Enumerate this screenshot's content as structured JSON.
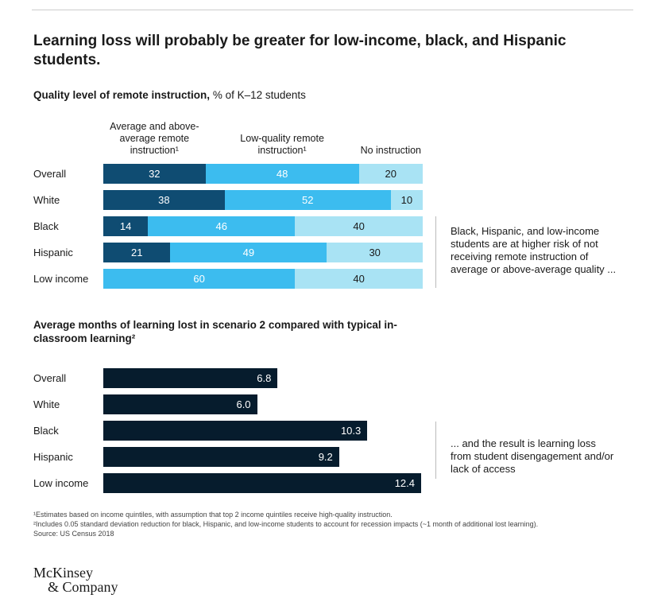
{
  "header": {
    "title": "Learning loss will probably be greater for low-income, black, and Hispanic students."
  },
  "chart_data": [
    {
      "type": "stacked_bar",
      "title": "Quality level of remote instruction,",
      "subtitle": "% of K–12 students",
      "categories": [
        "Overall",
        "White",
        "Black",
        "Hispanic",
        "Low income"
      ],
      "series": [
        {
          "name": "Average and above-average remote instruction¹",
          "color": "#0f4c72",
          "values": [
            32,
            38,
            14,
            21,
            null
          ]
        },
        {
          "name": "Low-quality remote instruction¹",
          "color": "#3cbcef",
          "values": [
            48,
            52,
            46,
            49,
            60
          ]
        },
        {
          "name": "No instruction",
          "color": "#a9e3f4",
          "values": [
            20,
            10,
            40,
            30,
            40
          ]
        }
      ],
      "annotation": "Black, Hispanic, and low-income students are at higher risk of not receiving remote instruction of average or above-average quality ..."
    },
    {
      "type": "bar",
      "title": "Average months of learning lost in scenario 2 compared with typical in-classroom learning²",
      "categories": [
        "Overall",
        "White",
        "Black",
        "Hispanic",
        "Low income"
      ],
      "values": [
        6.8,
        6.0,
        10.3,
        9.2,
        12.4
      ],
      "value_labels": [
        "6.8",
        "6.0",
        "10.3",
        "9.2",
        "12.4"
      ],
      "color": "#061c2d",
      "annotation": "... and the result is learning loss from student disengagement and/or lack of access"
    }
  ],
  "footnotes": [
    "¹Estimates based on income quintiles, with assumption that top 2 income quintiles receive high-quality instruction.",
    "²Includes 0.05 standard deviation reduction for black, Hispanic, and low-income students to account for recession impacts (~1 month of additional lost learning)."
  ],
  "source": "Source: US Census 2018",
  "logo": [
    "McKinsey",
    "& Company"
  ]
}
